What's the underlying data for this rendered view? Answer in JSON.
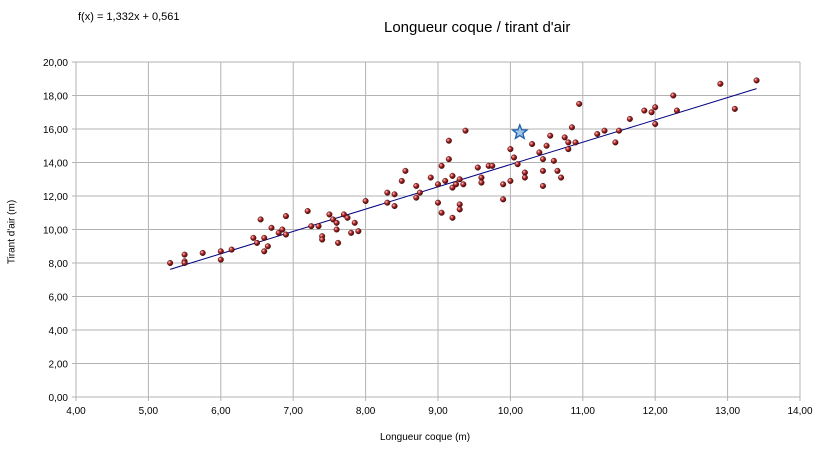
{
  "chart_data": {
    "type": "scatter",
    "title": "Longueur coque / tirant d'air",
    "equation": "f(x) = 1,332x + 0,561",
    "xlabel": "Longueur coque (m)",
    "ylabel": "Tirant d'air (m)",
    "xlim": [
      4,
      14
    ],
    "ylim": [
      0,
      20
    ],
    "x_ticks": [
      "4,00",
      "5,00",
      "6,00",
      "7,00",
      "8,00",
      "9,00",
      "10,00",
      "11,00",
      "12,00",
      "13,00",
      "14,00"
    ],
    "y_ticks": [
      "0,00",
      "2,00",
      "4,00",
      "6,00",
      "8,00",
      "10,00",
      "12,00",
      "14,00",
      "16,00",
      "18,00",
      "20,00"
    ],
    "grid": true,
    "trendline": {
      "slope": 1.332,
      "intercept": 0.561,
      "x_range": [
        5.3,
        13.4
      ]
    },
    "highlight_point": {
      "x": 10.13,
      "y": 15.8,
      "marker": "star",
      "color": "#1f5fa8"
    },
    "series": [
      {
        "marker": "sphere",
        "color": "#8b1a1a",
        "points": [
          [
            5.3,
            8.0
          ],
          [
            5.5,
            8.5
          ],
          [
            5.5,
            8.1
          ],
          [
            5.5,
            8.0
          ],
          [
            5.75,
            8.6
          ],
          [
            6.0,
            8.7
          ],
          [
            6.0,
            8.2
          ],
          [
            6.15,
            8.8
          ],
          [
            6.45,
            9.5
          ],
          [
            6.5,
            9.2
          ],
          [
            6.55,
            10.6
          ],
          [
            6.6,
            9.5
          ],
          [
            6.6,
            8.7
          ],
          [
            6.65,
            9.0
          ],
          [
            6.7,
            10.1
          ],
          [
            6.8,
            9.8
          ],
          [
            6.85,
            10.0
          ],
          [
            6.9,
            10.8
          ],
          [
            6.9,
            9.7
          ],
          [
            7.2,
            11.1
          ],
          [
            7.25,
            10.2
          ],
          [
            7.35,
            10.2
          ],
          [
            7.4,
            9.6
          ],
          [
            7.4,
            9.4
          ],
          [
            7.5,
            10.9
          ],
          [
            7.55,
            10.6
          ],
          [
            7.6,
            10.4
          ],
          [
            7.6,
            10.0
          ],
          [
            7.62,
            9.2
          ],
          [
            7.7,
            10.9
          ],
          [
            7.75,
            10.7
          ],
          [
            7.8,
            9.8
          ],
          [
            7.85,
            10.4
          ],
          [
            7.9,
            9.9
          ],
          [
            8.0,
            11.7
          ],
          [
            8.3,
            12.2
          ],
          [
            8.3,
            11.6
          ],
          [
            8.4,
            12.1
          ],
          [
            8.4,
            11.4
          ],
          [
            8.5,
            12.9
          ],
          [
            8.55,
            13.5
          ],
          [
            8.7,
            12.6
          ],
          [
            8.7,
            11.9
          ],
          [
            8.75,
            12.2
          ],
          [
            8.9,
            13.1
          ],
          [
            9.0,
            12.7
          ],
          [
            9.0,
            11.6
          ],
          [
            9.05,
            13.8
          ],
          [
            9.05,
            11.0
          ],
          [
            9.1,
            12.9
          ],
          [
            9.15,
            15.3
          ],
          [
            9.15,
            14.2
          ],
          [
            9.2,
            13.2
          ],
          [
            9.2,
            12.5
          ],
          [
            9.2,
            10.7
          ],
          [
            9.25,
            12.7
          ],
          [
            9.3,
            13.0
          ],
          [
            9.3,
            11.5
          ],
          [
            9.3,
            11.2
          ],
          [
            9.35,
            12.7
          ],
          [
            9.38,
            15.9
          ],
          [
            9.55,
            13.7
          ],
          [
            9.6,
            13.1
          ],
          [
            9.6,
            12.8
          ],
          [
            9.7,
            13.8
          ],
          [
            9.75,
            13.8
          ],
          [
            9.9,
            12.7
          ],
          [
            9.9,
            11.8
          ],
          [
            10.0,
            14.8
          ],
          [
            10.0,
            12.9
          ],
          [
            10.05,
            14.3
          ],
          [
            10.1,
            13.9
          ],
          [
            10.2,
            13.4
          ],
          [
            10.2,
            13.1
          ],
          [
            10.3,
            15.1
          ],
          [
            10.4,
            14.6
          ],
          [
            10.45,
            14.2
          ],
          [
            10.45,
            13.5
          ],
          [
            10.45,
            12.6
          ],
          [
            10.5,
            15.0
          ],
          [
            10.55,
            15.6
          ],
          [
            10.6,
            14.1
          ],
          [
            10.65,
            13.5
          ],
          [
            10.7,
            13.1
          ],
          [
            10.75,
            15.5
          ],
          [
            10.8,
            15.2
          ],
          [
            10.8,
            14.8
          ],
          [
            10.85,
            16.1
          ],
          [
            10.9,
            15.2
          ],
          [
            10.95,
            17.5
          ],
          [
            11.2,
            15.7
          ],
          [
            11.3,
            15.9
          ],
          [
            11.45,
            15.2
          ],
          [
            11.5,
            15.9
          ],
          [
            11.65,
            16.6
          ],
          [
            11.85,
            17.1
          ],
          [
            11.95,
            17.0
          ],
          [
            12.0,
            17.3
          ],
          [
            12.0,
            16.3
          ],
          [
            12.25,
            18.0
          ],
          [
            12.3,
            17.1
          ],
          [
            12.9,
            18.7
          ],
          [
            13.1,
            17.2
          ],
          [
            13.4,
            18.9
          ]
        ]
      }
    ]
  }
}
